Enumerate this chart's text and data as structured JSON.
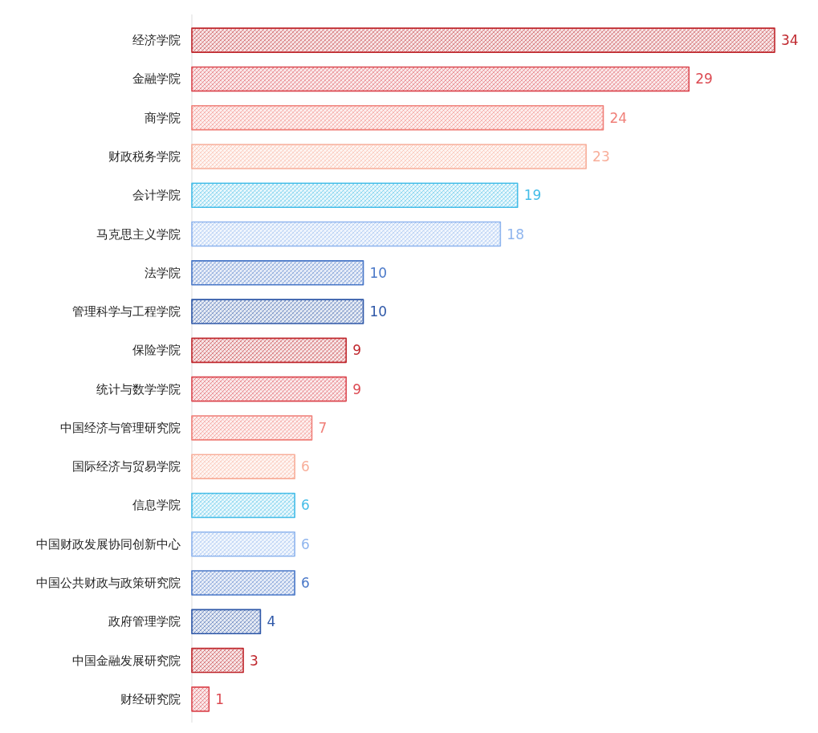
{
  "chart_data": {
    "type": "bar",
    "orientation": "horizontal",
    "categories": [
      "经济学院",
      "金融学院",
      "商学院",
      "财政税务学院",
      "会计学院",
      "马克思主义学院",
      "法学院",
      "管理科学与工程学院",
      "保险学院",
      "统计与数学学院",
      "中国经济与管理研究院",
      "国际经济与贸易学院",
      "信息学院",
      "中国财政发展协同创新中心",
      "中国公共财政与政策研究院",
      "政府管理学院",
      "中国金融发展研究院",
      "财经研究院"
    ],
    "values": [
      34,
      29,
      24,
      23,
      19,
      18,
      10,
      10,
      9,
      9,
      7,
      6,
      6,
      6,
      6,
      4,
      3,
      1
    ],
    "colors": [
      "#c0282e",
      "#dc4a52",
      "#f07f78",
      "#f8ae9a",
      "#45bde8",
      "#8fb5ee",
      "#4a78c8",
      "#2f58a8",
      "#c0282e",
      "#dc4a52",
      "#f07f78",
      "#f8ae9a",
      "#45bde8",
      "#8fb5ee",
      "#4a78c8",
      "#2f58a8",
      "#c0282e",
      "#dc4a52"
    ],
    "data_labels": true,
    "tick_labels": "y"
  }
}
